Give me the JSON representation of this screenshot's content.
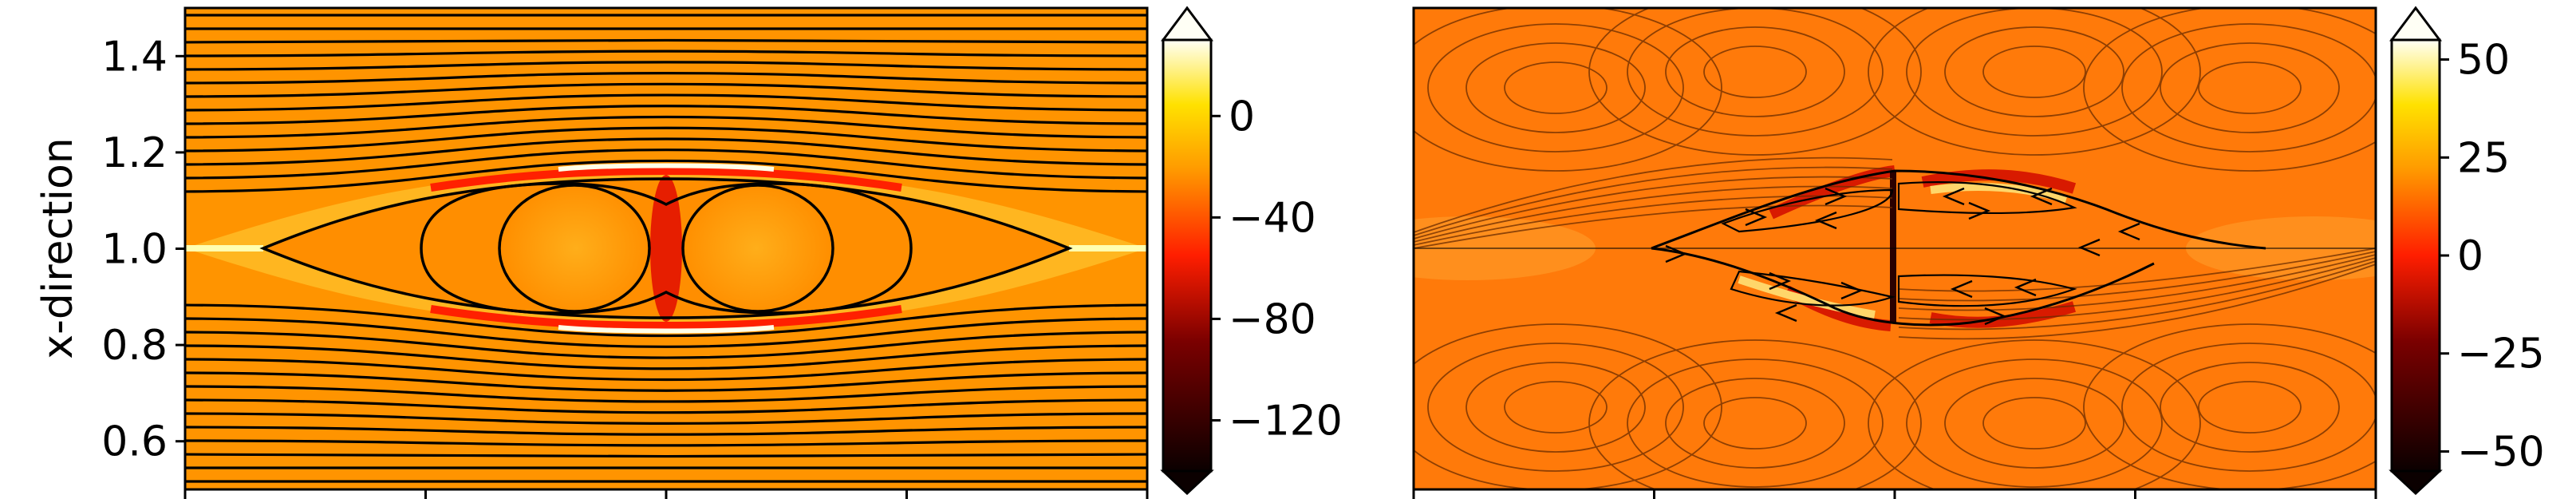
{
  "chart_data": [
    {
      "type": "heatmap",
      "title": "",
      "xlabel": "",
      "ylabel": "x-direction",
      "ylim": [
        0.5,
        1.5
      ],
      "y_ticks": [
        {
          "value": 0.6,
          "label": "0.6"
        },
        {
          "value": 0.8,
          "label": "0.8"
        },
        {
          "value": 1.0,
          "label": "1.0"
        },
        {
          "value": 1.2,
          "label": "1.2"
        },
        {
          "value": 1.4,
          "label": "1.4"
        }
      ],
      "x_tick_count": 5,
      "colormap": "hot",
      "colorbar": {
        "range": [
          -140,
          30
        ],
        "extend": "both",
        "ticks": [
          {
            "value": 0,
            "label": "0"
          },
          {
            "value": -40,
            "label": "−40"
          },
          {
            "value": -80,
            "label": "−80"
          },
          {
            "value": -120,
            "label": "−120"
          }
        ]
      },
      "overlay": "streamlines"
    },
    {
      "type": "heatmap",
      "title": "",
      "xlabel": "",
      "ylabel": "",
      "ylim": [
        0.5,
        1.5
      ],
      "x_tick_count": 5,
      "colormap": "hot",
      "colorbar": {
        "range": [
          -55,
          55
        ],
        "extend": "both",
        "ticks": [
          {
            "value": 50,
            "label": "50"
          },
          {
            "value": 25,
            "label": "25"
          },
          {
            "value": 0,
            "label": "0"
          },
          {
            "value": -25,
            "label": "−25"
          },
          {
            "value": -50,
            "label": "−50"
          }
        ]
      },
      "overlay": "streamlines-with-arrows"
    }
  ]
}
